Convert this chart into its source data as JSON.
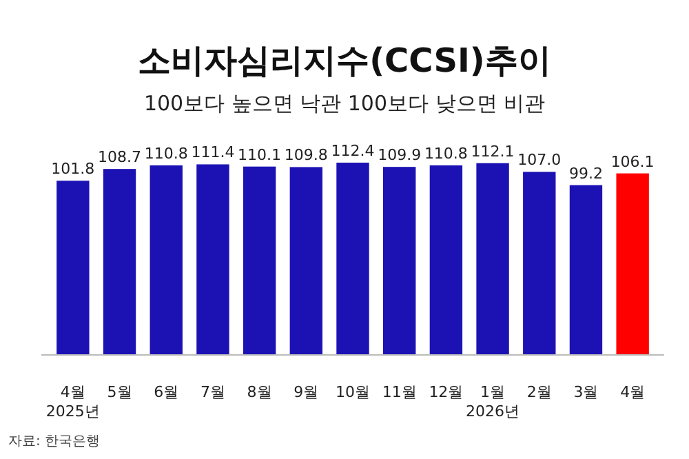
{
  "chart_data": {
    "type": "bar",
    "title": "소비자심리지수(CCSI)추이",
    "subtitle": "100보다 높으면 낙관 100보다 낮으면 비관",
    "categories": [
      "4월\n2025년",
      "5월",
      "6월",
      "7월",
      "8월",
      "9월",
      "10월",
      "11월",
      "12월",
      "1월\n2026년",
      "2월",
      "3월",
      "4월"
    ],
    "values": [
      101.8,
      108.7,
      110.8,
      111.4,
      110.1,
      109.8,
      112.4,
      109.9,
      110.8,
      112.1,
      107.0,
      99.2,
      106.1
    ],
    "value_labels": [
      "101.8",
      "108.7",
      "110.8",
      "111.4",
      "110.1",
      "109.8",
      "112.4",
      "109.9",
      "110.8",
      "112.1",
      "107.0",
      "99.2",
      "106.1"
    ],
    "colors": [
      "#1c12b4",
      "#1c12b4",
      "#1c12b4",
      "#1c12b4",
      "#1c12b4",
      "#1c12b4",
      "#1c12b4",
      "#1c12b4",
      "#1c12b4",
      "#1c12b4",
      "#1c12b4",
      "#1c12b4",
      "#ff0000"
    ],
    "annotations": [
      "자료: 한국은행"
    ]
  }
}
